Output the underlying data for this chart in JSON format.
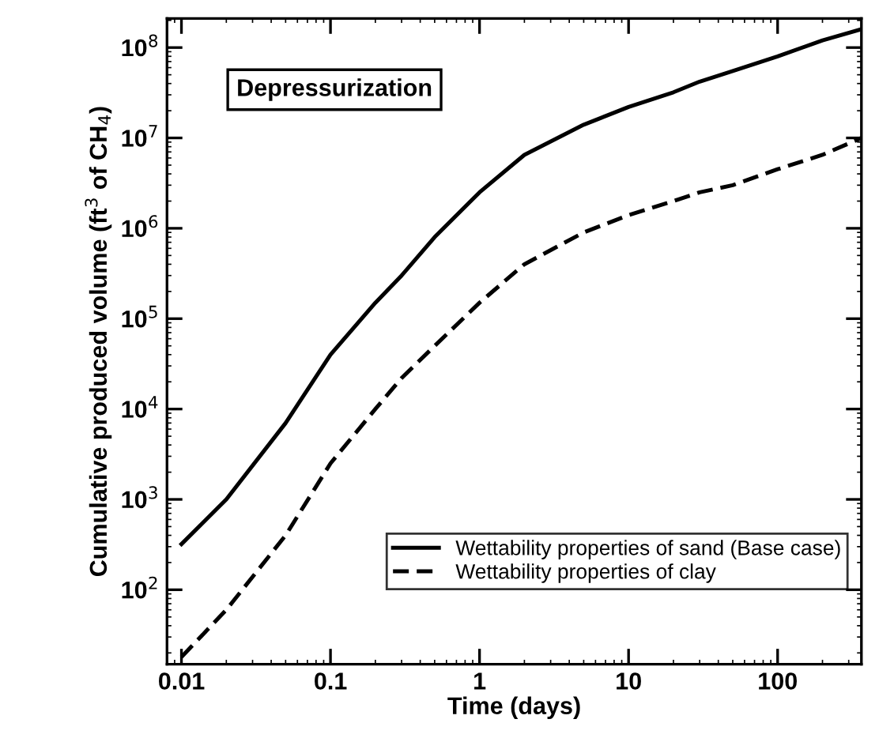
{
  "chart_data": {
    "type": "line",
    "xlabel": "Time (days)",
    "ylabel": "Cumulative produced volume (ft$^{3}$ of CH$_{4}$)",
    "log": "xy",
    "xlim": [
      0.008,
      365
    ],
    "ylim": [
      15,
      210000000.0
    ],
    "xticks": [
      0.01,
      0.1,
      1,
      10,
      100
    ],
    "yticks": [
      {
        "value": 100,
        "label": "10$^{2}$"
      },
      {
        "value": 1000,
        "label": "10$^{3}$"
      },
      {
        "value": 10000,
        "label": "10$^{4}$"
      },
      {
        "value": 100000,
        "label": "10$^{5}$"
      },
      {
        "value": 1000000,
        "label": "10$^{6}$"
      },
      {
        "value": 10000000,
        "label": "10$^{7}$"
      },
      {
        "value": 100000000,
        "label": "10$^{8}$"
      }
    ],
    "x": [
      0.01,
      0.02,
      0.05,
      0.1,
      0.2,
      0.3,
      0.5,
      1,
      2,
      5,
      10,
      20,
      30,
      50,
      100,
      200,
      365
    ],
    "series": [
      {
        "name": "Wettability properties of sand (Base case)",
        "color": "#000000",
        "line_style": "solid",
        "values": [
          320,
          1000,
          7000,
          40000,
          150000,
          300000,
          800000,
          2500000,
          6500000,
          14000000,
          22000000,
          32000000,
          42000000,
          55000000,
          80000000,
          120000000,
          160000000
        ]
      },
      {
        "name": "Wettability properties of clay",
        "color": "#000000",
        "line_style": "dashed",
        "values": [
          18,
          60,
          400,
          2500,
          10000,
          22000,
          50000,
          150000,
          400000,
          900000,
          1400000,
          2000000,
          2500000,
          3000000,
          4500000,
          6500000,
          10000000
        ]
      }
    ],
    "annotations": [
      "Depressurization"
    ],
    "legend": "bottom right",
    "grid": false,
    "marker": "none"
  }
}
